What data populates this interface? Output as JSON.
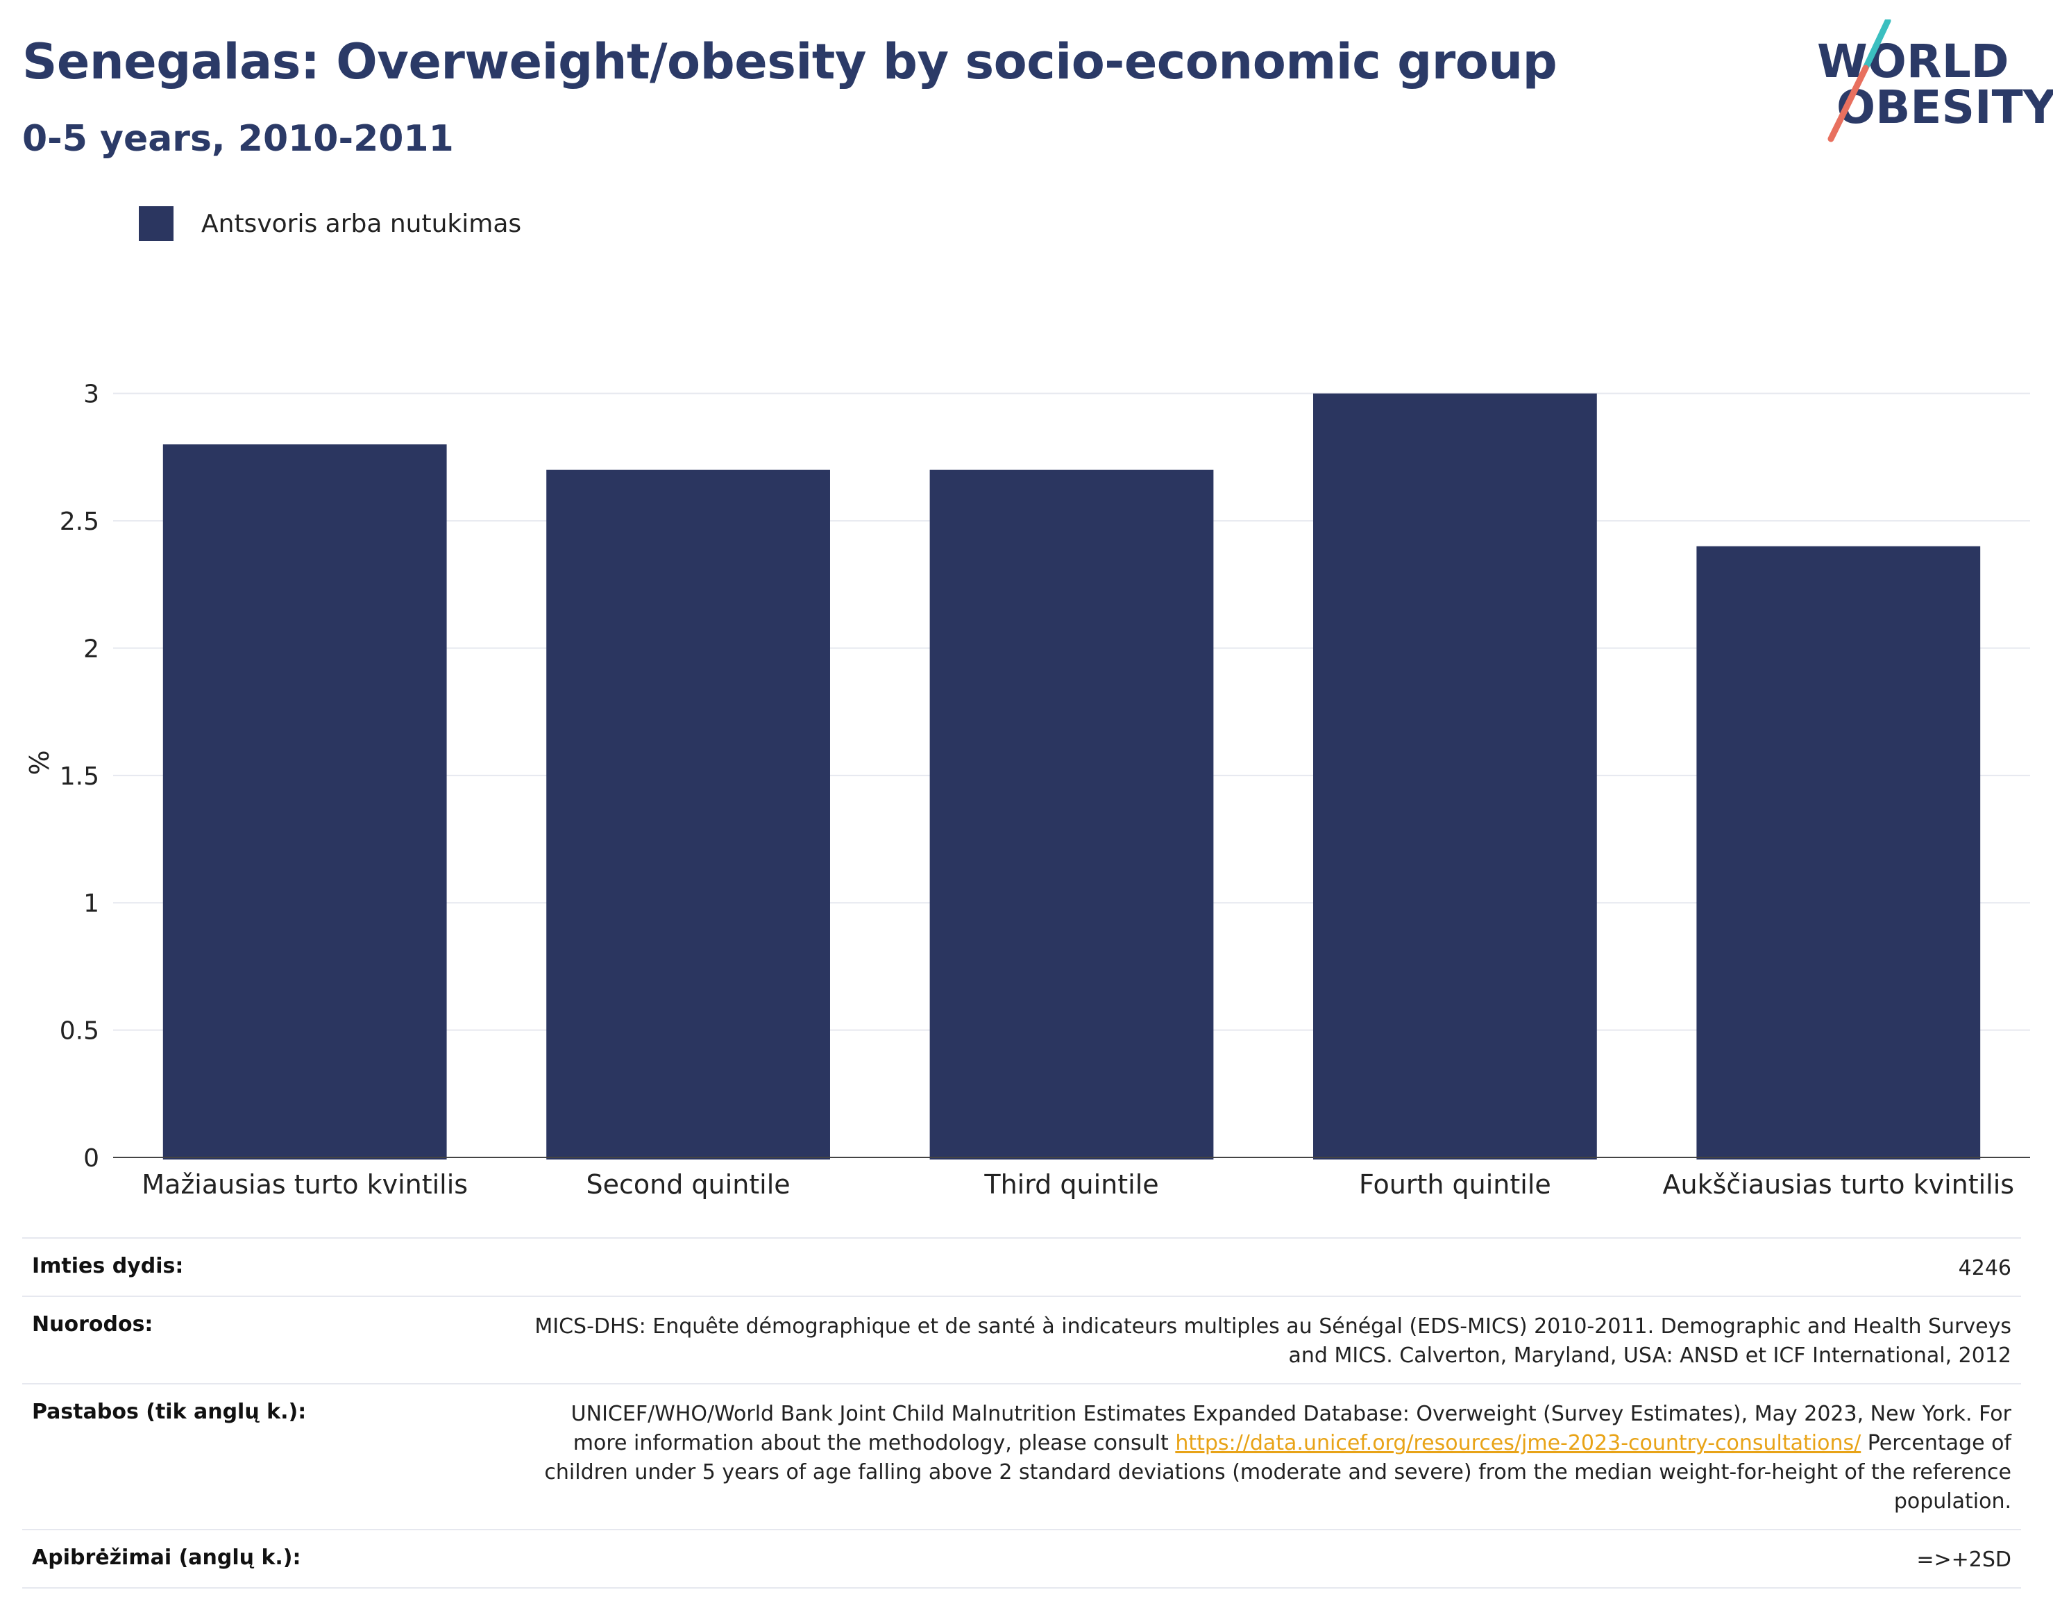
{
  "header": {
    "title": "Senegalas: Overweight/obesity by socio-economic group",
    "subtitle": "0-5 years, 2010-2011"
  },
  "logo": {
    "line1": "WORLD",
    "line2": "OBESITY"
  },
  "colors": {
    "bar": "#2b3660",
    "title": "#2b3a67",
    "grid": "#e6e8ef",
    "link": "#e8a317",
    "logo_teal": "#3bbfc0",
    "logo_coral": "#e8705f"
  },
  "chart_data": {
    "type": "bar",
    "categories": [
      "Mažiausias turto kvintilis",
      "Second quintile",
      "Third quintile",
      "Fourth quintile",
      "Aukščiausias turto kvintilis"
    ],
    "series": [
      {
        "name": "Antsvoris arba nutukimas",
        "values": [
          2.8,
          2.7,
          2.7,
          3.0,
          2.4
        ]
      }
    ],
    "ylabel": "%",
    "ylim": [
      0,
      3.1
    ],
    "yticks": [
      0,
      0.5,
      1,
      1.5,
      2,
      2.5,
      3
    ],
    "ytick_labels": [
      "0",
      "0.5",
      "1",
      "1.5",
      "2",
      "2.5",
      "3"
    ],
    "grid": true,
    "legend": "top-left"
  },
  "info": {
    "sample_label": "Imties dydis:",
    "sample_value": "4246",
    "refs_label": "Nuorodos:",
    "refs_value": "MICS-DHS: Enquête démographique et de santé à indicateurs multiples au Sénégal (EDS-MICS) 2010-2011. Demographic and Health Surveys and MICS. Calverton, Maryland, USA: ANSD et ICF International, 2012",
    "notes_label": "Pastabos (tik anglų k.):",
    "notes_text1": "UNICEF/WHO/World Bank Joint Child Malnutrition Estimates Expanded Database: Overweight (Survey Estimates), May 2023, New York. For more information about the methodology, please consult ",
    "notes_link": "https://data.unicef.org/resources/jme-2023-country-consultations/",
    "notes_text2": " Percentage of children under 5 years of age falling above 2 standard deviations (moderate and severe) from the median weight-for-height of the reference population.",
    "defs_label": "Apibrėžimai (anglų k.):",
    "defs_value": "=>+2SD"
  }
}
